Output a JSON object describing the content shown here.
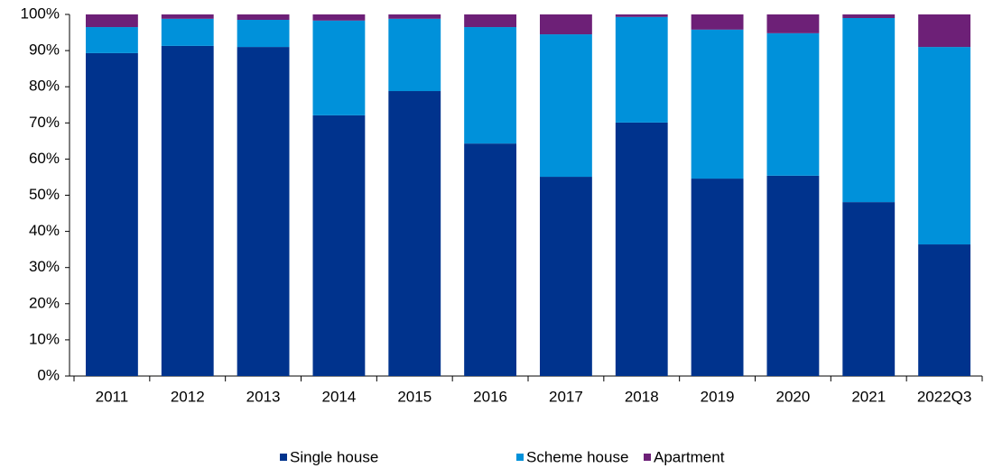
{
  "chart_data": {
    "type": "stacked_bar",
    "categories": [
      "2011",
      "2012",
      "2013",
      "2014",
      "2015",
      "2016",
      "2017",
      "2018",
      "2019",
      "2020",
      "2021",
      "2022Q3"
    ],
    "series": [
      {
        "name": "Single house",
        "color": "#00338d",
        "values": [
          89.3,
          91.3,
          91.0,
          72.1,
          78.8,
          64.3,
          55.1,
          70.1,
          54.6,
          55.4,
          48.1,
          36.4
        ]
      },
      {
        "name": "Scheme house",
        "color": "#0091da",
        "values": [
          7.2,
          7.5,
          7.5,
          26.2,
          20.0,
          32.2,
          39.4,
          29.2,
          41.2,
          39.4,
          50.9,
          54.6
        ]
      },
      {
        "name": "Apartment",
        "color": "#6d2077",
        "values": [
          3.5,
          1.2,
          1.5,
          1.7,
          1.2,
          3.5,
          5.5,
          0.7,
          4.2,
          5.2,
          1.0,
          9.0
        ]
      }
    ],
    "ylim": [
      0,
      100
    ],
    "yticks": [
      {
        "value": 0,
        "label": "0%"
      },
      {
        "value": 10,
        "label": "10%"
      },
      {
        "value": 20,
        "label": "20%"
      },
      {
        "value": 30,
        "label": "30%"
      },
      {
        "value": 40,
        "label": "40%"
      },
      {
        "value": 50,
        "label": "50%"
      },
      {
        "value": 60,
        "label": "60%"
      },
      {
        "value": 70,
        "label": "70%"
      },
      {
        "value": 80,
        "label": "80%"
      },
      {
        "value": 90,
        "label": "90%"
      },
      {
        "value": 100,
        "label": "100%"
      }
    ],
    "legend": "bottom"
  }
}
